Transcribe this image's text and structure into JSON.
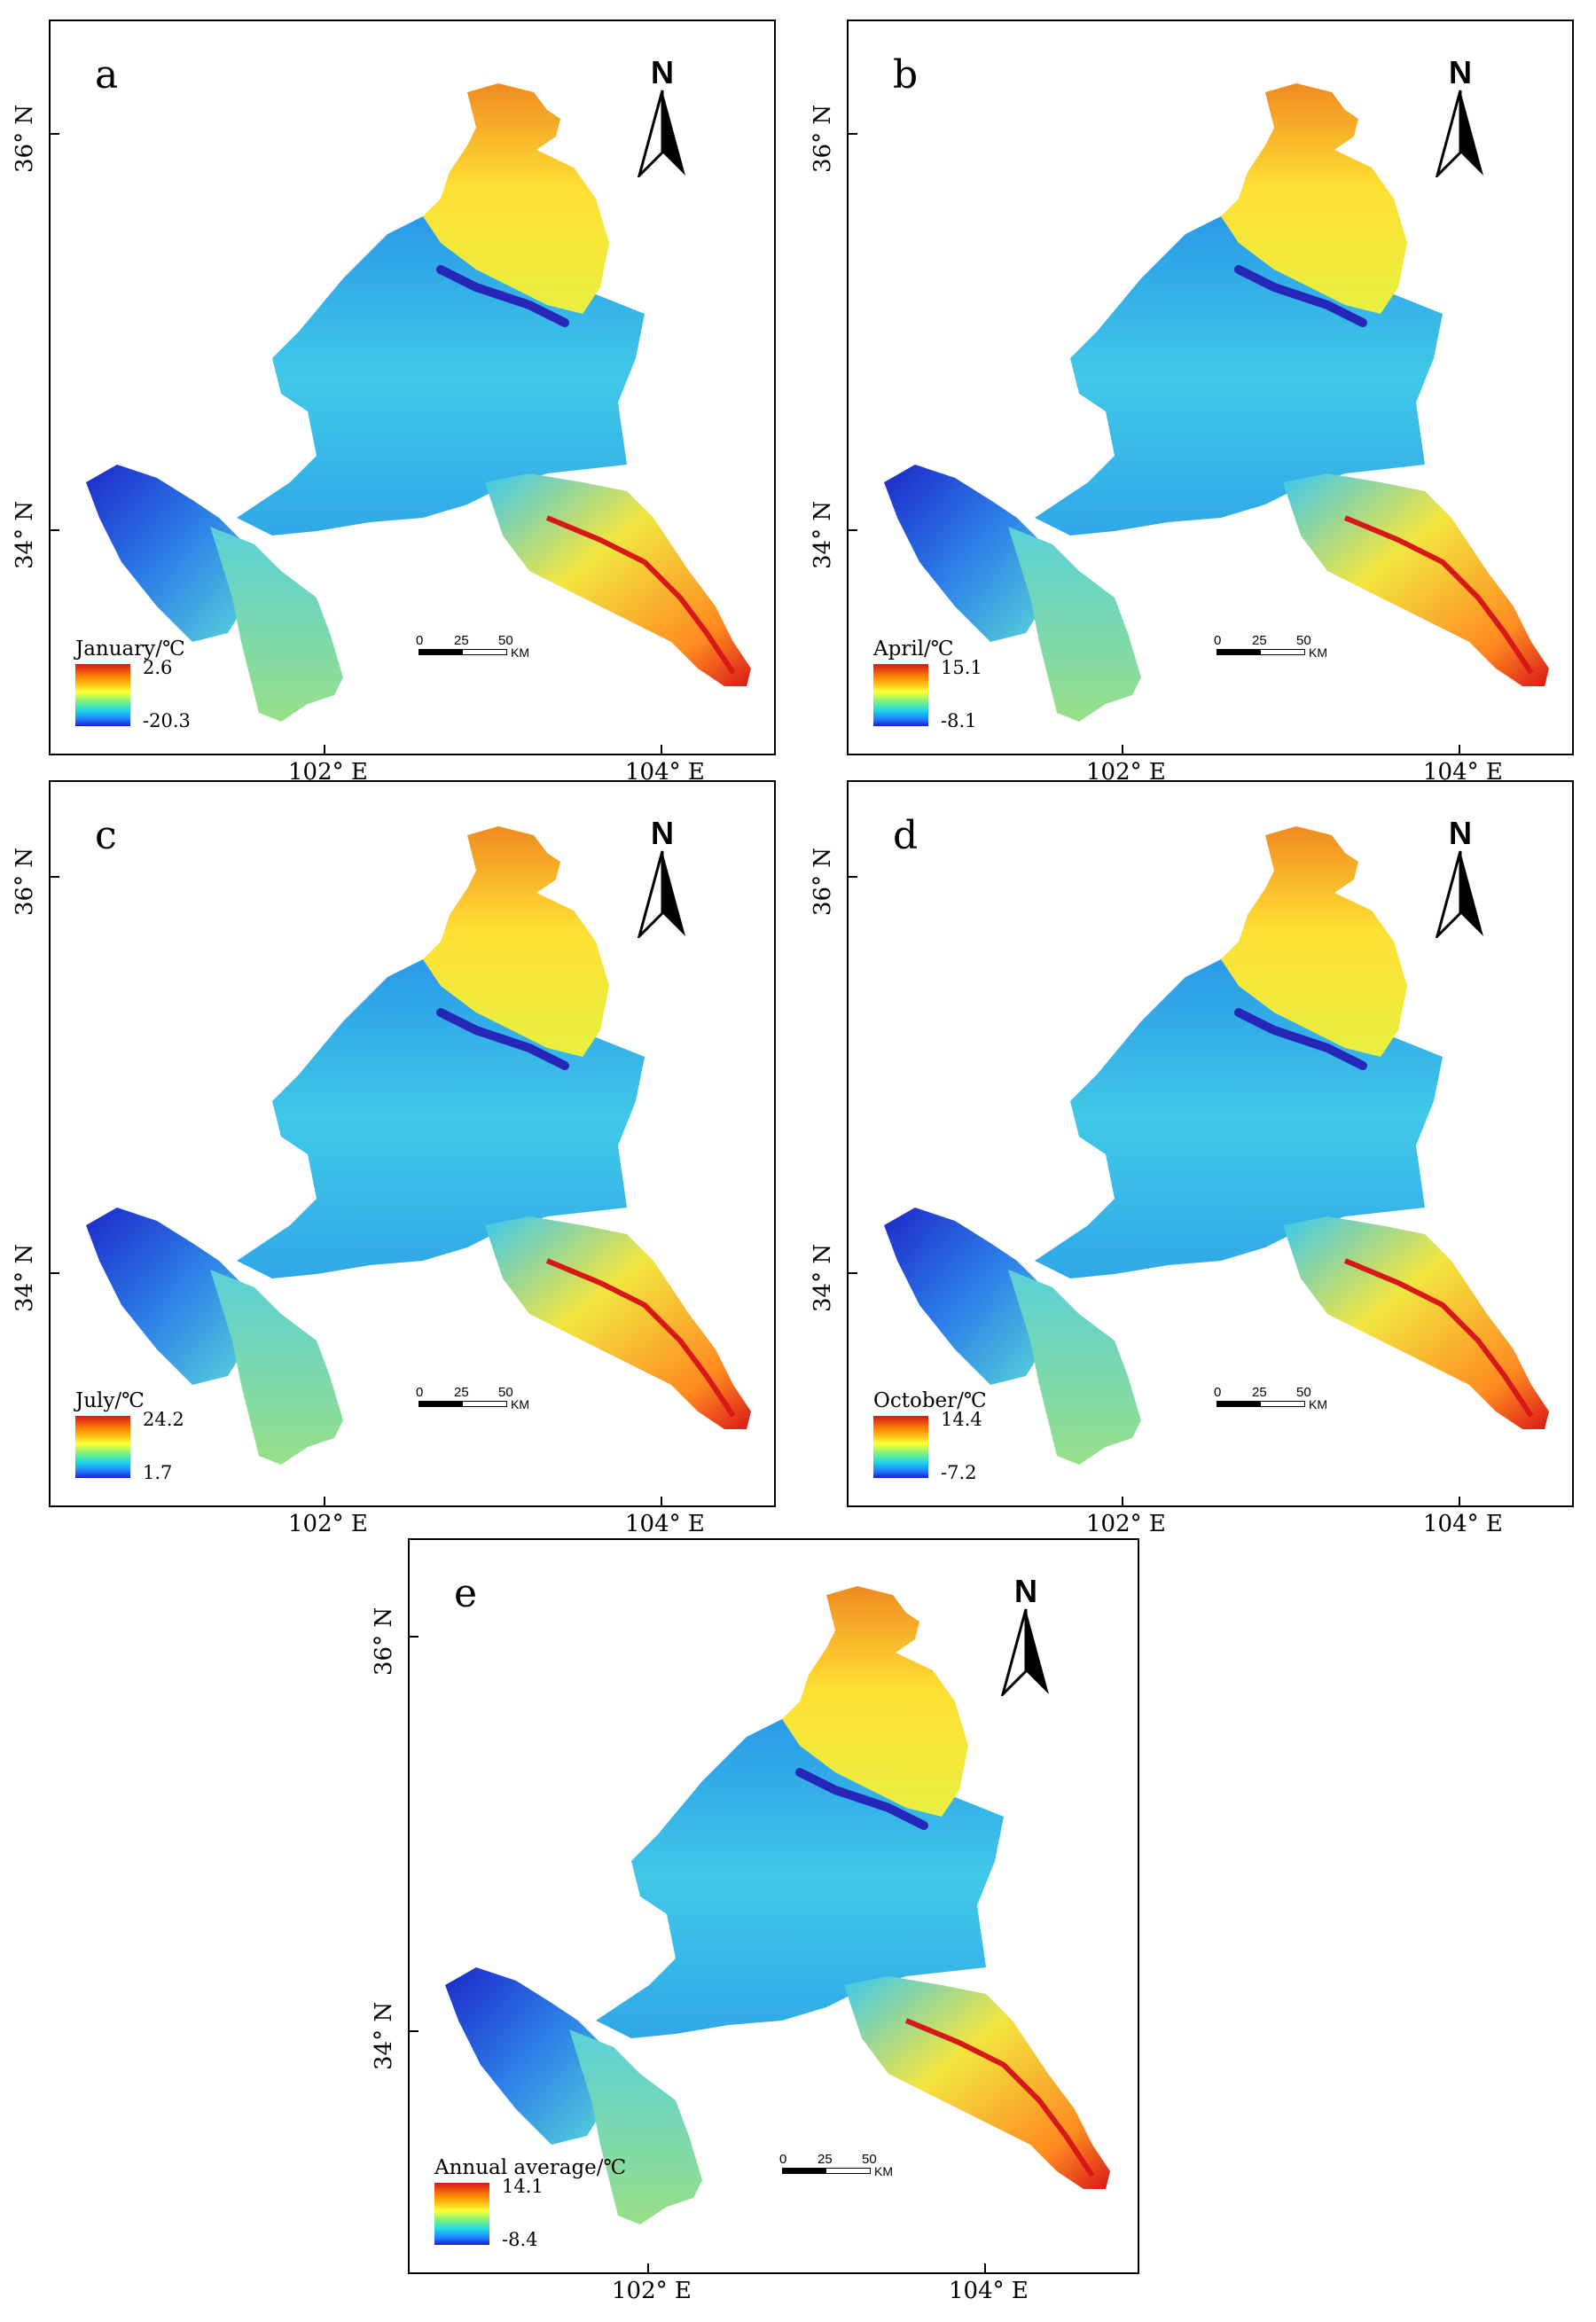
{
  "north_label": "N",
  "scale": {
    "labels": [
      "0",
      "25",
      "50"
    ],
    "unit": "KM"
  },
  "axes": {
    "x": [
      "102°  E",
      "104°  E"
    ],
    "y": [
      "36°  N",
      "34°  N"
    ]
  },
  "colors": {
    "max": "#d7191c",
    "mid": "#ffff33",
    "min": "#1a1ad0"
  },
  "panels": [
    {
      "letter": "a",
      "legend_title": "January/℃",
      "max": "2.6",
      "min": "-20.3"
    },
    {
      "letter": "b",
      "legend_title": "April/℃",
      "max": "15.1",
      "min": "-8.1"
    },
    {
      "letter": "c",
      "legend_title": "July/℃",
      "max": "24.2",
      "min": "1.7"
    },
    {
      "letter": "d",
      "legend_title": "October/℃",
      "max": "14.4",
      "min": "-7.2"
    },
    {
      "letter": "e",
      "legend_title": "Annual average/℃",
      "max": "14.1",
      "min": "-8.4"
    }
  ]
}
